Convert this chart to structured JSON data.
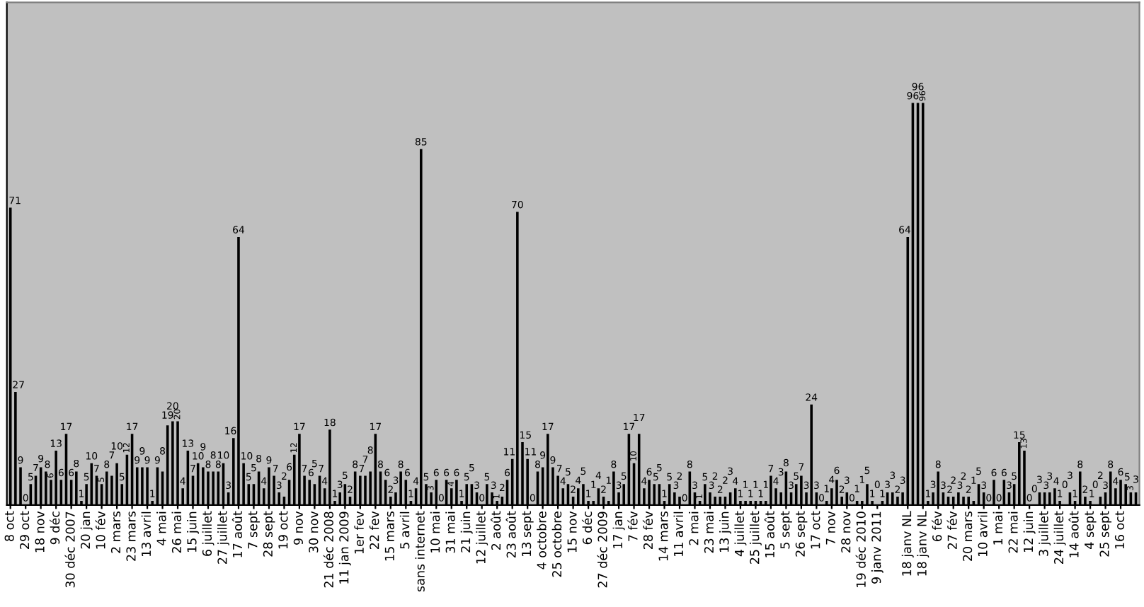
{
  "chart_data": {
    "type": "bar",
    "categories": [
      "8 oct",
      null,
      null,
      "29 oct",
      null,
      null,
      "18 nov",
      null,
      null,
      "9 déc",
      null,
      null,
      "30 déc 2007",
      null,
      null,
      "20 jan",
      null,
      null,
      "10 fév",
      null,
      null,
      "2 mars",
      null,
      null,
      "23 mars",
      null,
      null,
      "13 avril",
      null,
      null,
      "4 mai",
      null,
      null,
      "26 mai",
      null,
      null,
      "15 juin",
      null,
      null,
      "6 juillet",
      null,
      null,
      "27 juillet",
      null,
      null,
      "17 août",
      null,
      null,
      "7 sept",
      null,
      null,
      "28 sept",
      null,
      null,
      "19 oct",
      null,
      null,
      "9 nov",
      null,
      null,
      "30 nov",
      null,
      null,
      "21 déc 2008",
      null,
      null,
      "11 jan 2009",
      null,
      null,
      "1er fev",
      null,
      null,
      "22 fev",
      null,
      null,
      "15 mars",
      null,
      null,
      "5 avril",
      null,
      null,
      "sans internet",
      null,
      null,
      "10 mai",
      null,
      null,
      "31 mai",
      null,
      null,
      "21 juin",
      null,
      null,
      "12 juillet",
      null,
      null,
      "2 août",
      null,
      null,
      "23 août",
      null,
      null,
      "13 sept",
      null,
      null,
      "4 octobre",
      null,
      null,
      "25 octobre",
      null,
      null,
      "15 nov",
      null,
      null,
      "6 déc",
      null,
      null,
      "27 déc 2009",
      null,
      null,
      "17 jan",
      null,
      null,
      "7 fév",
      null,
      null,
      "28 fév",
      null,
      null,
      "14 mars",
      null,
      null,
      "11 avril",
      null,
      null,
      "2 mai",
      null,
      null,
      "23 mai",
      null,
      null,
      "13 juin",
      null,
      null,
      "4 juillet",
      null,
      null,
      "25 juillet",
      null,
      null,
      "15 août",
      null,
      null,
      "5 sept",
      null,
      null,
      "26 sept",
      null,
      null,
      "17 oct",
      null,
      null,
      "7 nov",
      null,
      null,
      "28 nov",
      null,
      null,
      "19 déc 2010",
      null,
      null,
      "9 janv 2011",
      null,
      null,
      null,
      null,
      null,
      "18 janv NL",
      null,
      null,
      "18 janv NL",
      null,
      null,
      "6 fév",
      null,
      null,
      "27 fév",
      null,
      null,
      "20 mars",
      null,
      null,
      "10 avril",
      null,
      null,
      "1 mai",
      null,
      null,
      "22 mai",
      null,
      null,
      "12 juin",
      null,
      null,
      "3 juillet",
      null,
      null,
      "24 juillet",
      null,
      null,
      "14 août",
      null,
      null,
      "4 sept",
      null,
      null,
      "25 sept",
      null,
      null,
      "16 oct",
      null,
      null,
      null
    ],
    "values": [
      71,
      27,
      9,
      0,
      5,
      7,
      9,
      8,
      6,
      13,
      6,
      17,
      6,
      8,
      1,
      5,
      10,
      7,
      5,
      8,
      7,
      10,
      5,
      12,
      17,
      9,
      9,
      9,
      1,
      9,
      8,
      19,
      20,
      20,
      4,
      13,
      7,
      10,
      9,
      8,
      8,
      8,
      10,
      3,
      16,
      64,
      10,
      5,
      5,
      8,
      4,
      9,
      7,
      3,
      2,
      6,
      12,
      17,
      7,
      6,
      5,
      7,
      4,
      18,
      1,
      3,
      5,
      2,
      8,
      7,
      7,
      8,
      17,
      8,
      6,
      2,
      3,
      8,
      6,
      1,
      4,
      85,
      5,
      3,
      6,
      0,
      6,
      4,
      6,
      1,
      5,
      5,
      3,
      0,
      5,
      3,
      1,
      2,
      6,
      11,
      70,
      15,
      11,
      0,
      8,
      9,
      17,
      9,
      7,
      4,
      5,
      2,
      4,
      5,
      1,
      1,
      4,
      2,
      1,
      8,
      3,
      5,
      17,
      10,
      17,
      4,
      6,
      5,
      5,
      1,
      5,
      3,
      2,
      0,
      8,
      3,
      1,
      5,
      3,
      2,
      2,
      2,
      3,
      4,
      1,
      1,
      1,
      1,
      1,
      1,
      7,
      4,
      3,
      8,
      3,
      5,
      7,
      3,
      24,
      3,
      0,
      1,
      4,
      6,
      2,
      3,
      0,
      1,
      1,
      5,
      1,
      0,
      1,
      3,
      3,
      2,
      3,
      64,
      96,
      96,
      96,
      1,
      3,
      8,
      3,
      2,
      2,
      3,
      2,
      2,
      1,
      5,
      3,
      0,
      6,
      0,
      6,
      3,
      5,
      15,
      13,
      0,
      0,
      3,
      3,
      3,
      4,
      1,
      0,
      3,
      1,
      8,
      2,
      1,
      0,
      2,
      3,
      8,
      4,
      6,
      5,
      3,
      3
    ],
    "color": "#000000",
    "ylim": [
      0,
      120
    ],
    "data_labels": true,
    "grid": false,
    "legend": false
  }
}
